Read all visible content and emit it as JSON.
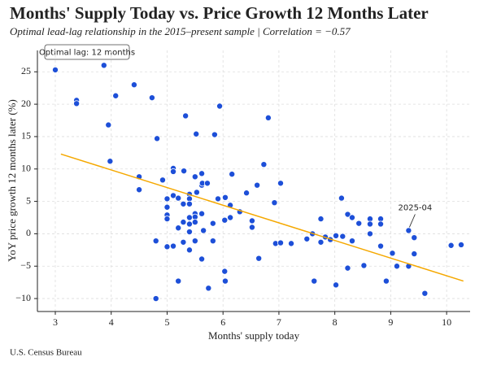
{
  "chart_data": {
    "type": "scatter",
    "title": "Months' Supply Today vs. Price Growth 12 Months Later",
    "subtitle": "Optimal lead-lag relationship in the 2015–present sample | Correlation = −0.57",
    "x_label": "Months' supply today",
    "y_label": "YoY price growth 12 months later (%)",
    "source": "U.S. Census Bureau",
    "note": "Optimal lag: 12 months",
    "color": "#1d4fd8",
    "grid": true,
    "xlim": [
      2.68,
      10.42
    ],
    "ylim": [
      -12,
      28.3
    ],
    "xticks": [
      3,
      4,
      5,
      6,
      7,
      8,
      9,
      10
    ],
    "yticks": [
      {
        "value": -10,
        "label": "−10"
      },
      {
        "value": -5,
        "label": "−5"
      },
      0,
      5,
      10,
      15,
      20,
      25
    ],
    "x": [
      3.0,
      3.38,
      3.38,
      3.87,
      4.08,
      3.95,
      3.98,
      4.41,
      4.5,
      4.5,
      4.73,
      4.82,
      4.8,
      4.8,
      4.92,
      5.0,
      5.0,
      5.0,
      5.0,
      5.0,
      5.11,
      5.11,
      5.11,
      5.11,
      5.2,
      5.2,
      5.2,
      5.29,
      5.29,
      5.29,
      5.3,
      5.33,
      5.4,
      5.4,
      5.4,
      5.4,
      5.4,
      5.4,
      5.4,
      5.5,
      5.5,
      5.5,
      5.5,
      5.5,
      5.52,
      5.53,
      5.62,
      5.62,
      5.62,
      5.62,
      5.63,
      5.65,
      5.72,
      5.74,
      5.82,
      5.82,
      5.85,
      5.91,
      5.94,
      6.03,
      6.03,
      6.04,
      6.04,
      6.13,
      6.13,
      6.16,
      6.3,
      6.42,
      6.52,
      6.52,
      6.61,
      6.64,
      6.73,
      6.81,
      6.92,
      6.94,
      7.03,
      7.03,
      7.22,
      7.5,
      7.6,
      7.63,
      7.75,
      7.75,
      7.83,
      7.92,
      8.02,
      8.02,
      8.12,
      8.14,
      8.23,
      8.23,
      8.31,
      8.31,
      8.43,
      8.52,
      8.63,
      8.63,
      8.63,
      8.82,
      8.82,
      8.82,
      8.92,
      9.03,
      9.11,
      9.32,
      9.32,
      9.42,
      9.42,
      9.61,
      10.08,
      10.26
    ],
    "values": [
      25.3,
      20.6,
      20.1,
      26.0,
      21.3,
      16.8,
      11.2,
      23.0,
      8.8,
      6.8,
      21.0,
      14.7,
      -1.1,
      -10.0,
      8.3,
      5.4,
      4.1,
      2.9,
      2.3,
      -2.0,
      10.1,
      9.6,
      5.9,
      -1.9,
      5.5,
      0.9,
      -7.3,
      4.6,
      1.8,
      -1.3,
      9.7,
      18.2,
      6.1,
      5.4,
      4.6,
      2.5,
      1.5,
      0.3,
      -2.5,
      8.8,
      3.1,
      2.6,
      1.8,
      -1.1,
      15.4,
      6.4,
      9.3,
      7.5,
      3.1,
      -3.9,
      7.8,
      0.5,
      7.8,
      -8.4,
      1.6,
      -1.1,
      15.3,
      5.4,
      19.7,
      2.1,
      -5.8,
      5.6,
      -7.3,
      4.4,
      2.5,
      9.2,
      3.4,
      6.3,
      2.0,
      1.0,
      7.5,
      -3.8,
      10.7,
      17.9,
      4.8,
      -1.5,
      7.8,
      -1.4,
      -1.5,
      -0.8,
      0.0,
      -7.3,
      2.3,
      -1.3,
      -0.5,
      -0.9,
      -0.3,
      -7.9,
      5.5,
      -0.4,
      3.0,
      -5.3,
      2.5,
      -1.1,
      1.6,
      -4.9,
      2.3,
      1.5,
      0.0,
      2.3,
      1.5,
      -1.9,
      -7.3,
      -3.0,
      -5.0,
      0.5,
      -5.0,
      -0.6,
      -3.1,
      -9.2,
      -1.8,
      -1.7
    ],
    "trend": {
      "color": "#f5a800",
      "x": [
        3.1,
        10.3
      ],
      "y": [
        12.3,
        -7.3
      ]
    },
    "annotations": [
      {
        "text": "2025-04",
        "x": 9.32,
        "y": 0.5
      }
    ]
  }
}
